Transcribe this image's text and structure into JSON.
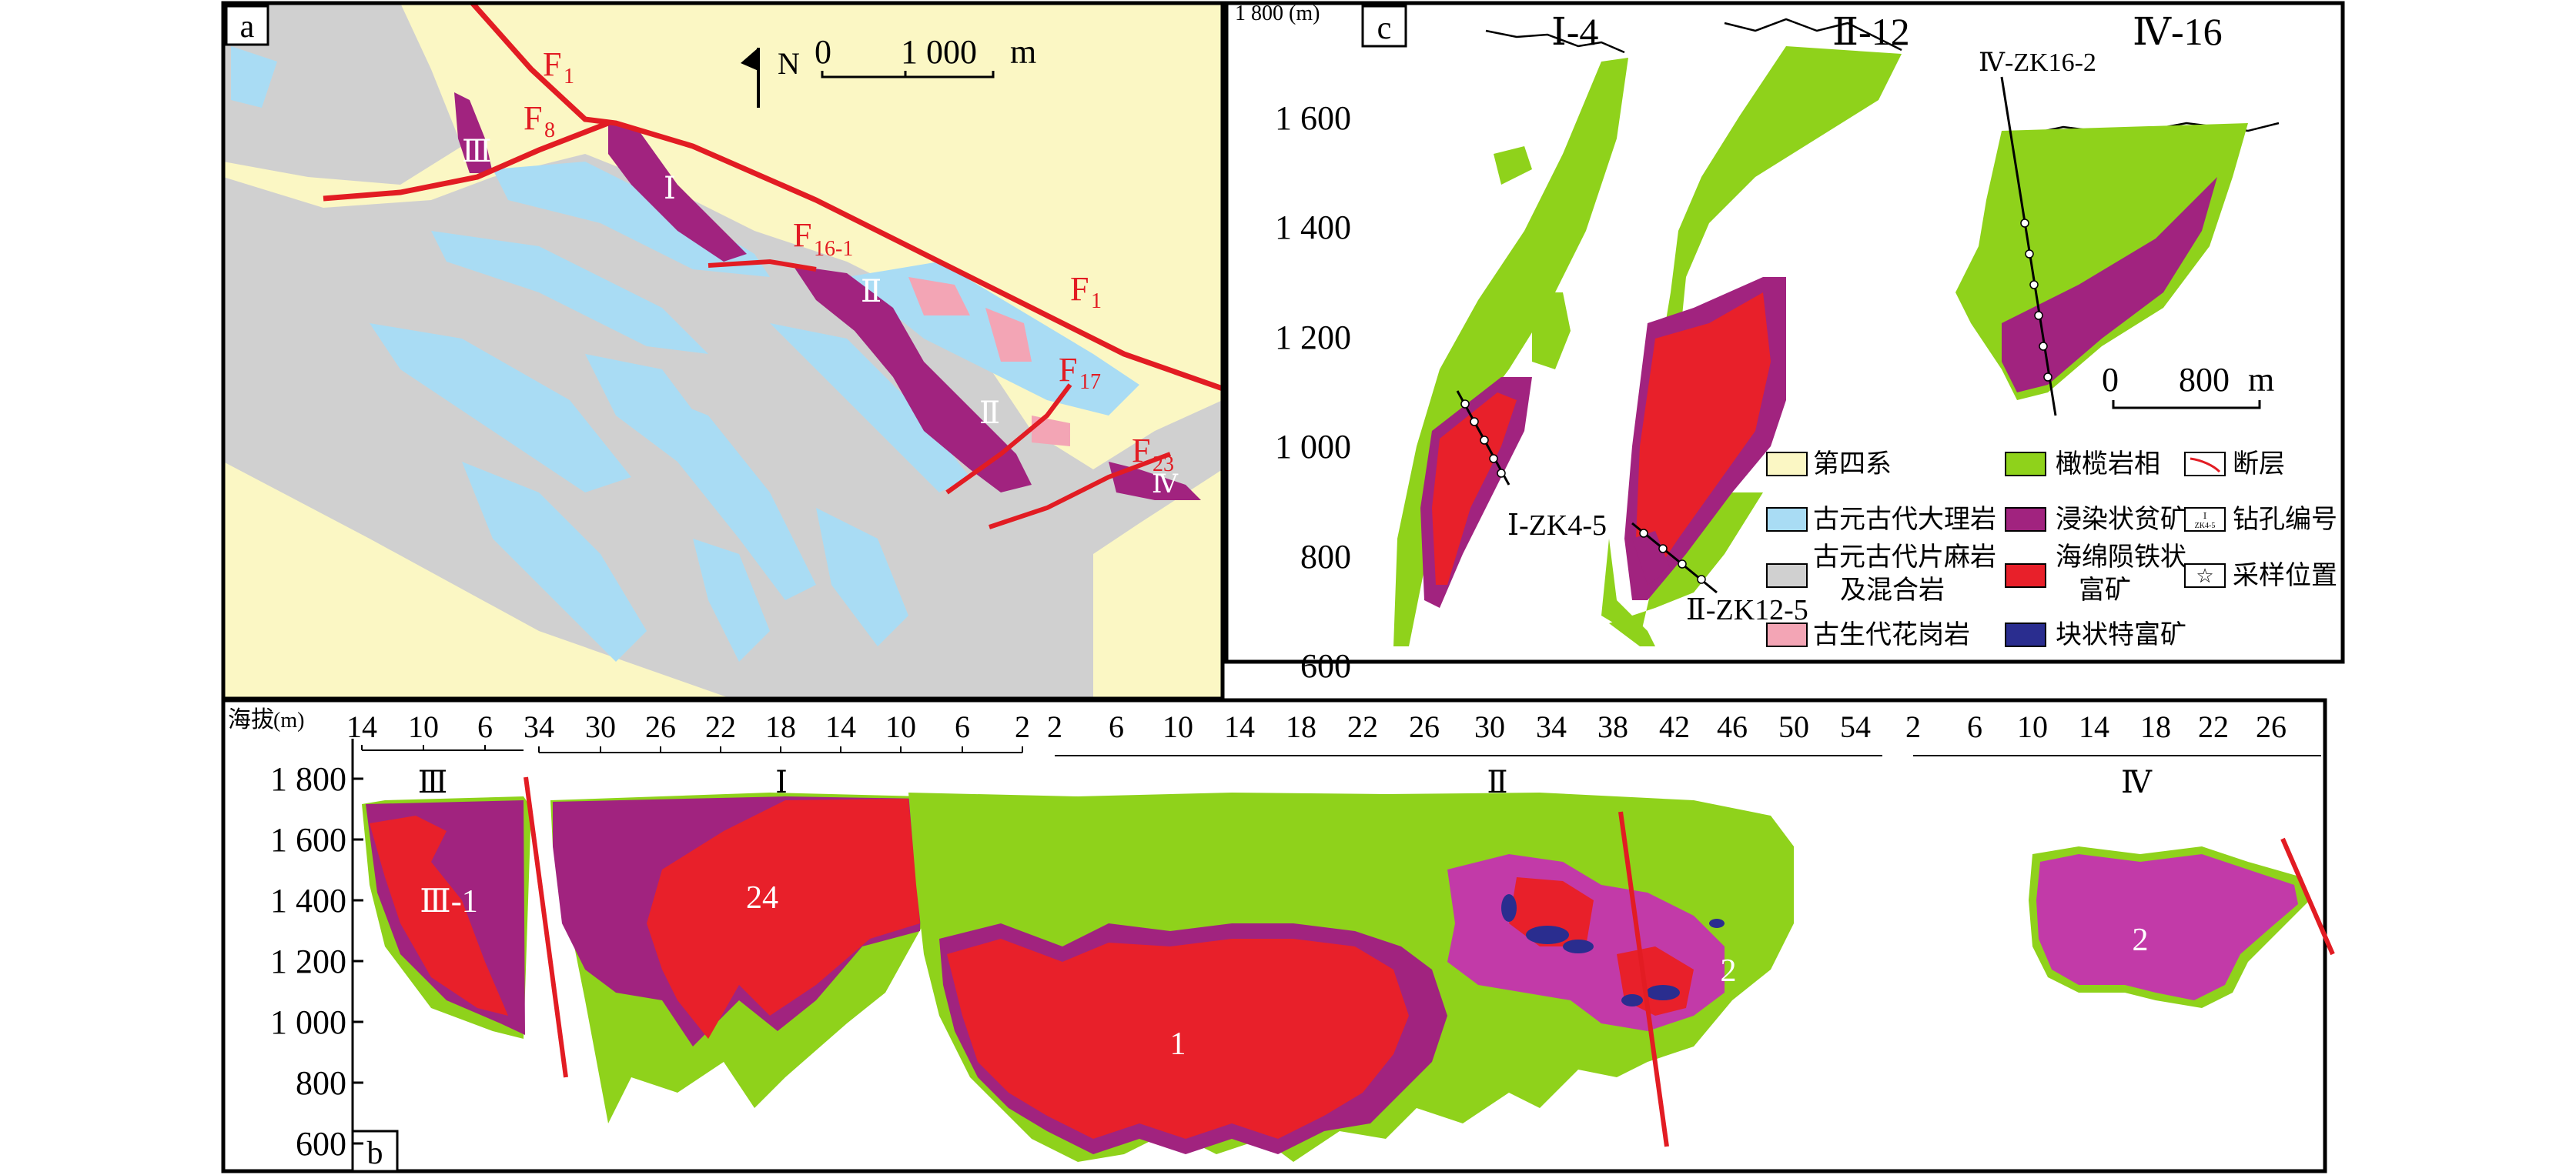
{
  "panel_a": {
    "label": "a",
    "north": "N",
    "scale_zero": "0",
    "scale_value": "1 000",
    "scale_unit": "m",
    "faults": [
      "F",
      "1",
      "F",
      "8",
      "F",
      "16-1",
      "F",
      "17",
      "F",
      "23",
      "F",
      "1"
    ],
    "orebodies": [
      "Ⅰ",
      "Ⅱ",
      "Ⅱ",
      "Ⅲ",
      "Ⅳ"
    ]
  },
  "panel_c": {
    "label": "c",
    "axis_unit": "1 800 (m)",
    "yticks": [
      "1 600",
      "1 400",
      "1 200",
      "1 000",
      "800",
      "600"
    ],
    "sections": [
      "Ⅰ-4",
      "Ⅱ-12",
      "Ⅳ-16"
    ],
    "drillholes": [
      "Ⅰ-ZK4-5",
      "Ⅱ-ZK12-5",
      "Ⅳ-ZK16-2"
    ],
    "scale_zero": "0",
    "scale_value": "800",
    "scale_unit": "m"
  },
  "legend": {
    "quaternary": "第四系",
    "marble": "古元古代大理岩",
    "gneiss_1": "古元古代片麻岩",
    "gneiss_2": "及混合岩",
    "granite": "古生代花岗岩",
    "olivine": "橄榄岩相",
    "disseminated": "浸染状贫矿",
    "sideronitic_1": "海绵陨铁状",
    "sideronitic_2": "富矿",
    "massive": "块状特富矿",
    "fault": "断层",
    "drillhole": "钻孔编号",
    "drillhole_icon_1": "Ⅰ",
    "drillhole_icon_2": "ZK4-5",
    "sample": "采样位置"
  },
  "panel_b": {
    "label": "b",
    "axis_prefix": "海拔",
    "axis_unit": "(m)",
    "yticks": [
      "1 800",
      "1 600",
      "1 400",
      "1 200",
      "1 000",
      "800",
      "600"
    ],
    "group_III_ticks": [
      "14",
      "10",
      "6"
    ],
    "group_I_ticks": [
      "34",
      "30",
      "26",
      "22",
      "18",
      "14",
      "10",
      "6",
      "2"
    ],
    "group_II_ticks": [
      "2",
      "6",
      "10",
      "14",
      "18",
      "22",
      "26",
      "30",
      "34",
      "38",
      "42",
      "46",
      "50",
      "54"
    ],
    "group_IV_ticks": [
      "2",
      "6",
      "10",
      "14",
      "18",
      "22",
      "26"
    ],
    "section_labels": [
      "Ⅲ",
      "Ⅰ",
      "Ⅱ",
      "Ⅳ"
    ],
    "body_labels": [
      "Ⅲ-1",
      "24",
      "1",
      "2",
      "2"
    ]
  },
  "colors": {
    "quaternary": "#fbf7c4",
    "marble": "#a9dcf4",
    "gneiss": "#d0d0d0",
    "granite": "#f3a5b5",
    "olivine": "#8fd21b",
    "disseminated": "#a1237f",
    "disseminated_b": "#c23aa8",
    "sideronitic": "#e8202a",
    "massive": "#2a2d8f",
    "fault": "#e21c23"
  }
}
